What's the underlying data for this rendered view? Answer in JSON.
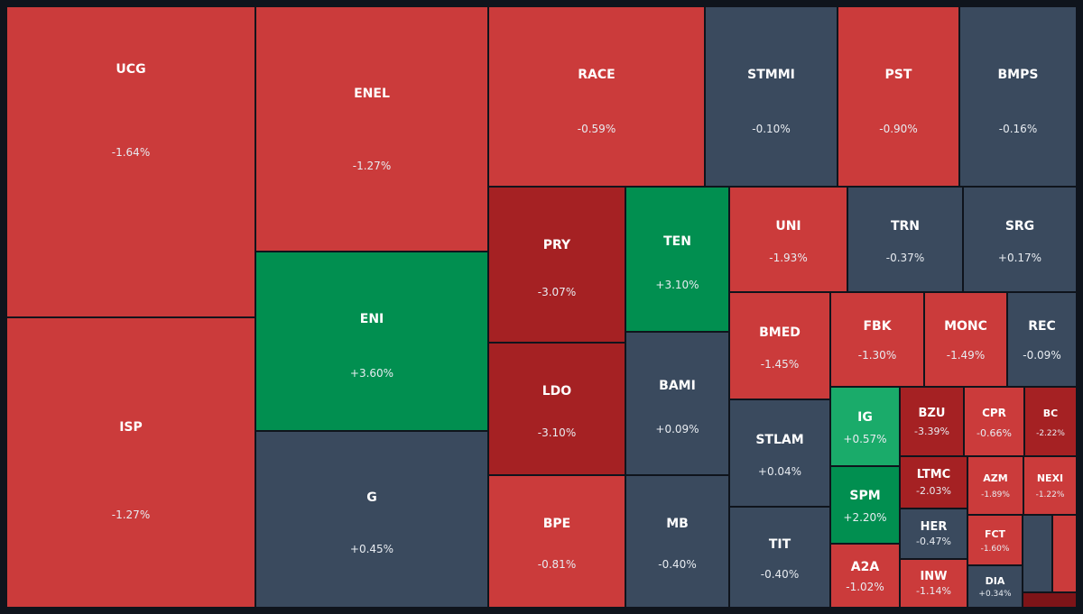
{
  "chart_data": {
    "type": "treemap",
    "title": "",
    "colors": {
      "strong_down": "#a52123",
      "down": "#cb3b3b",
      "flat": "#3a4a5e",
      "up": "#018f50",
      "mild_up": "#1aab6a",
      "deep_down": "#7e1418",
      "background": "#0f141c"
    },
    "tiles": [
      {
        "symbol": "UCG",
        "change": "-1.64%",
        "value": -1.64
      },
      {
        "symbol": "ISP",
        "change": "-1.27%",
        "value": -1.27
      },
      {
        "symbol": "ENEL",
        "change": "-1.27%",
        "value": -1.27
      },
      {
        "symbol": "ENI",
        "change": "+3.60%",
        "value": 3.6
      },
      {
        "symbol": "G",
        "change": "+0.45%",
        "value": 0.45
      },
      {
        "symbol": "RACE",
        "change": "-0.59%",
        "value": -0.59
      },
      {
        "symbol": "STMMI",
        "change": "-0.10%",
        "value": -0.1
      },
      {
        "symbol": "PST",
        "change": "-0.90%",
        "value": -0.9
      },
      {
        "symbol": "BMPS",
        "change": "-0.16%",
        "value": -0.16
      },
      {
        "symbol": "PRY",
        "change": "-3.07%",
        "value": -3.07
      },
      {
        "symbol": "LDO",
        "change": "-3.10%",
        "value": -3.1
      },
      {
        "symbol": "BPE",
        "change": "-0.81%",
        "value": -0.81
      },
      {
        "symbol": "TEN",
        "change": "+3.10%",
        "value": 3.1
      },
      {
        "symbol": "BAMI",
        "change": "+0.09%",
        "value": 0.09
      },
      {
        "symbol": "MB",
        "change": "-0.40%",
        "value": -0.4
      },
      {
        "symbol": "UNI",
        "change": "-1.93%",
        "value": -1.93
      },
      {
        "symbol": "TRN",
        "change": "-0.37%",
        "value": -0.37
      },
      {
        "symbol": "SRG",
        "change": "+0.17%",
        "value": 0.17
      },
      {
        "symbol": "BMED",
        "change": "-1.45%",
        "value": -1.45
      },
      {
        "symbol": "STLAM",
        "change": "+0.04%",
        "value": 0.04
      },
      {
        "symbol": "TIT",
        "change": "-0.40%",
        "value": -0.4
      },
      {
        "symbol": "FBK",
        "change": "-1.30%",
        "value": -1.3
      },
      {
        "symbol": "MONC",
        "change": "-1.49%",
        "value": -1.49
      },
      {
        "symbol": "REC",
        "change": "-0.09%",
        "value": -0.09
      },
      {
        "symbol": "IG",
        "change": "+0.57%",
        "value": 0.57
      },
      {
        "symbol": "SPM",
        "change": "+2.20%",
        "value": 2.2
      },
      {
        "symbol": "A2A",
        "change": "-1.02%",
        "value": -1.02
      },
      {
        "symbol": "BZU",
        "change": "-3.39%",
        "value": -3.39
      },
      {
        "symbol": "LTMC",
        "change": "-2.03%",
        "value": -2.03
      },
      {
        "symbol": "HER",
        "change": "-0.47%",
        "value": -0.47
      },
      {
        "symbol": "INW",
        "change": "-1.14%",
        "value": -1.14
      },
      {
        "symbol": "CPR",
        "change": "-0.66%",
        "value": -0.66
      },
      {
        "symbol": "BC",
        "change": "-2.22%",
        "value": -2.22
      },
      {
        "symbol": "AZM",
        "change": "-1.89%",
        "value": -1.89
      },
      {
        "symbol": "NEXI",
        "change": "-1.22%",
        "value": -1.22
      },
      {
        "symbol": "FCT",
        "change": "-1.60%",
        "value": -1.6
      },
      {
        "symbol": "DIA",
        "change": "+0.34%",
        "value": 0.34
      },
      {
        "symbol": "",
        "change": "",
        "value": null,
        "color_key": "flat"
      },
      {
        "symbol": "",
        "change": "",
        "value": null,
        "color_key": "down"
      },
      {
        "symbol": "",
        "change": "",
        "value": null,
        "color_key": "deep_down"
      }
    ]
  }
}
